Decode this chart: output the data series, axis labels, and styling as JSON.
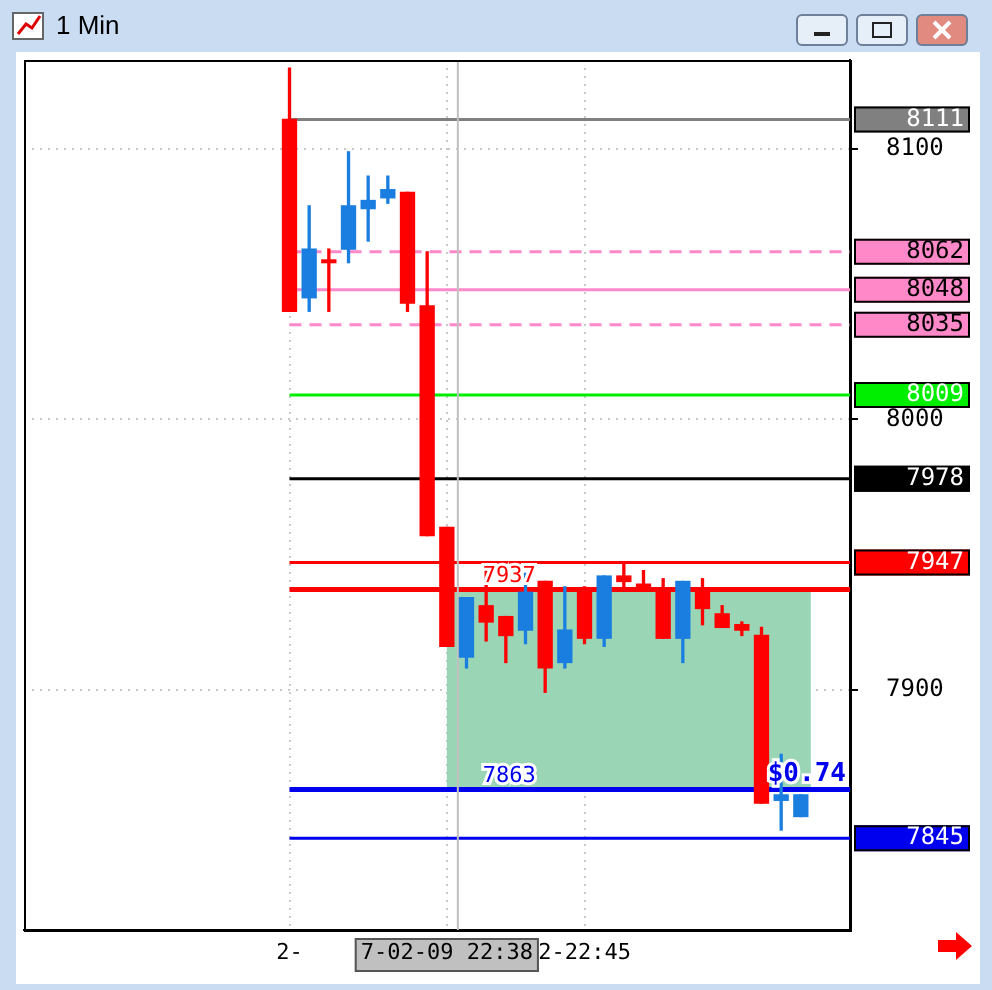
{
  "chart_data": {
    "type": "candlestick",
    "title": "1 Min",
    "categories": [
      null,
      null,
      null,
      null,
      null,
      null,
      null,
      null,
      null,
      null,
      null,
      null,
      null,
      "2-",
      null,
      null,
      null,
      null,
      null,
      null,
      null,
      "7-02-09 22:38",
      null,
      null,
      null,
      null,
      null,
      null,
      "2-22:45",
      null,
      null,
      null,
      null,
      null,
      null,
      null,
      null,
      null,
      null,
      null,
      null,
      null
    ],
    "ohlc": [
      null,
      null,
      null,
      null,
      null,
      null,
      null,
      null,
      null,
      null,
      null,
      null,
      null,
      [
        8111,
        8130,
        8040,
        8040
      ],
      [
        8045,
        8079,
        8040,
        8063
      ],
      [
        8059,
        8063,
        8040,
        8058
      ],
      [
        8063,
        8099,
        8058,
        8079
      ],
      [
        8078,
        8090,
        8066,
        8081
      ],
      [
        8082,
        8090,
        8080,
        8085
      ],
      [
        8084,
        8084,
        8040,
        8043
      ],
      [
        8042,
        8062,
        7957,
        7957
      ],
      [
        7960,
        7960,
        7916,
        7916
      ],
      [
        7912,
        7934,
        7908,
        7934
      ],
      [
        7931,
        7946,
        7918,
        7925
      ],
      [
        7927,
        7927,
        7910,
        7920
      ],
      [
        7922,
        7943,
        7917,
        7936
      ],
      [
        7940,
        7940,
        7899,
        7908
      ],
      [
        7910,
        7938,
        7908,
        7922
      ],
      [
        7936,
        7938,
        7917,
        7919
      ],
      [
        7919,
        7942,
        7916,
        7942
      ],
      [
        7942,
        7947,
        7938,
        7940
      ],
      [
        7939,
        7944,
        7937,
        7937
      ],
      [
        7936,
        7941,
        7919,
        7919
      ],
      [
        7919,
        7940,
        7910,
        7940
      ],
      [
        7936,
        7941,
        7924,
        7930
      ],
      [
        7928,
        7931,
        7923,
        7923
      ],
      [
        7924,
        7925,
        7920,
        7922
      ],
      [
        7920,
        7923,
        7858,
        7858
      ],
      [
        7859,
        7876,
        7848,
        7861
      ],
      [
        7853,
        7861,
        7853,
        7861
      ],
      null,
      null
    ],
    "colors": [
      null,
      null,
      null,
      null,
      null,
      null,
      null,
      null,
      null,
      null,
      null,
      null,
      null,
      "#ff0000",
      "#1a7ee0",
      "#ff0000",
      "#1a7ee0",
      "#1a7ee0",
      "#1a7ee0",
      "#ff0000",
      "#ff0000",
      "#ff0000",
      "#1a7ee0",
      "#ff0000",
      "#ff0000",
      "#1a7ee0",
      "#ff0000",
      "#1a7ee0",
      "#ff0000",
      "#1a7ee0",
      "#ff0000",
      "#ff0000",
      "#ff0000",
      "#1a7ee0",
      "#ff0000",
      "#ff0000",
      "#ff0000",
      "#ff0000",
      "#1a7ee0",
      "#1a7ee0",
      null,
      null
    ],
    "ylim": [
      7811,
      8133
    ],
    "yticks": [
      7900,
      8000,
      8100
    ],
    "grid": true,
    "bands": [
      {
        "axis": "y",
        "from": 7863,
        "to": 7937,
        "color": "#9ad6b6"
      }
    ],
    "ref_lines": [
      {
        "axis": "y",
        "value": 8111,
        "label": "8111",
        "color": "#808080"
      },
      {
        "axis": "y",
        "value": 8062,
        "label": "8062",
        "color": "#ff88c8",
        "line_style": "dashed"
      },
      {
        "axis": "y",
        "value": 8048,
        "label": "8048",
        "color": "#ff88c8"
      },
      {
        "axis": "y",
        "value": 8035,
        "label": "8035",
        "color": "#ff88c8",
        "line_style": "dashed"
      },
      {
        "axis": "y",
        "value": 8009,
        "label": "8009",
        "color": "#00ee00"
      },
      {
        "axis": "y",
        "value": 7978,
        "label": "7978",
        "color": "#000000"
      },
      {
        "axis": "y",
        "value": 7947,
        "label": "7947",
        "color": "#ff0000"
      },
      {
        "axis": "y",
        "value": 7937,
        "color": "#ff0000"
      },
      {
        "axis": "y",
        "value": 7863,
        "color": "#0000ee"
      },
      {
        "axis": "y",
        "value": 7845,
        "label": "7845",
        "color": "#0000ee"
      },
      {
        "axis": "x",
        "value": "7-02-09 22:38",
        "color": "#c0c0c0"
      }
    ],
    "annotations": [
      {
        "text": "7937",
        "y": 7937
      },
      {
        "text": "7863",
        "y": 7863
      },
      {
        "text": "$0.74",
        "y": 7863
      }
    ]
  }
}
